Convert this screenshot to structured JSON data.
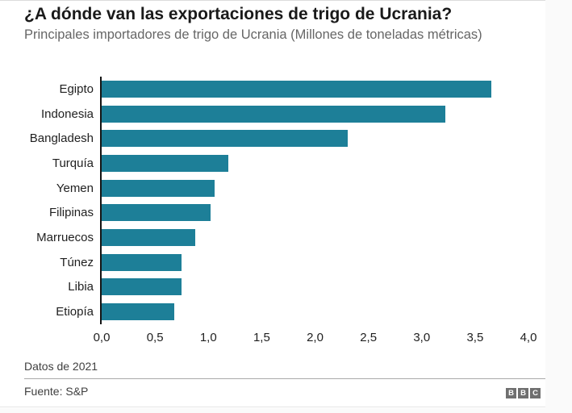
{
  "header": {
    "title": "¿A dónde van las exportaciones de trigo de Ucrania?",
    "subtitle": "Principales importadores de trigo de Ucrania (Millones de toneladas métricas)"
  },
  "chart_data": {
    "type": "bar",
    "orientation": "horizontal",
    "title": "¿A dónde van las exportaciones de trigo de Ucrania?",
    "subtitle": "Principales importadores de trigo de Ucrania (Millones de toneladas métricas)",
    "categories": [
      "Egipto",
      "Indonesia",
      "Bangladesh",
      "Turquía",
      "Yemen",
      "Filipinas",
      "Marruecos",
      "Túnez",
      "Libia",
      "Etiopía"
    ],
    "values": [
      3.65,
      3.22,
      2.31,
      1.19,
      1.06,
      1.02,
      0.88,
      0.75,
      0.75,
      0.68
    ],
    "xlabel": "",
    "ylabel": "",
    "xlim": [
      0,
      4.0
    ],
    "x_tick_labels": [
      "0,0",
      "0,5",
      "1,0",
      "1,5",
      "2,0",
      "2,5",
      "3,0",
      "3,5",
      "4,0"
    ],
    "grid": false,
    "legend": "none",
    "bar_color": "#1d7f98",
    "axis_color": "#141414"
  },
  "footer": {
    "note": "Datos de 2021",
    "source": "Fuente: S&P",
    "logo_letters": [
      "B",
      "B",
      "C"
    ]
  }
}
